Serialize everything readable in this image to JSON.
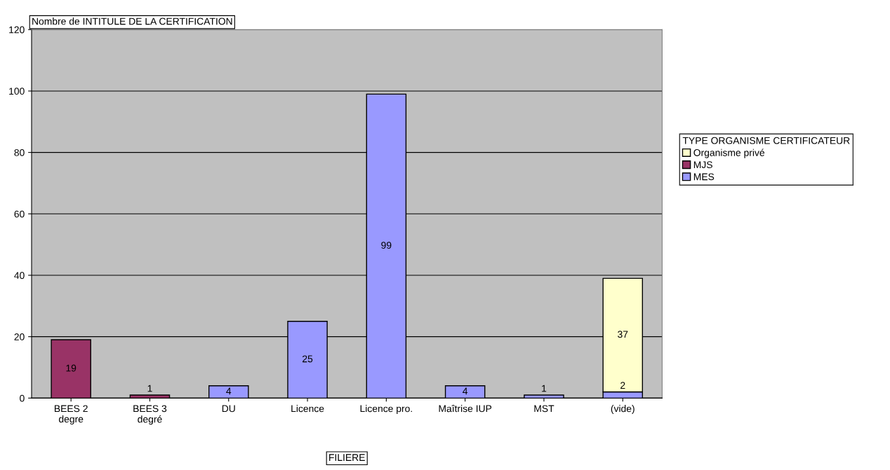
{
  "chart_data": {
    "type": "bar",
    "stacked": true,
    "title": "Nombre de INTITULE DE LA CERTIFICATION",
    "xlabel": "FILIERE",
    "legend_title": "TYPE ORGANISME CERTIFICATEUR",
    "categories": [
      "BEES 2\ndegre",
      "BEES 3\ndegré",
      "DU",
      "Licence",
      "Licence pro.",
      "Maîtrise IUP",
      "MST",
      "(vide)"
    ],
    "series": [
      {
        "name": "MES",
        "color": "#9999ff",
        "values": [
          null,
          null,
          4,
          25,
          99,
          4,
          1,
          2
        ]
      },
      {
        "name": "MJS",
        "color": "#993366",
        "values": [
          19,
          1,
          null,
          null,
          null,
          null,
          null,
          null
        ]
      },
      {
        "name": "Organisme privé",
        "color": "#ffffcc",
        "values": [
          null,
          null,
          null,
          null,
          null,
          null,
          null,
          37
        ]
      }
    ],
    "ylim": [
      0,
      120
    ],
    "yticks": [
      0,
      20,
      40,
      60,
      80,
      100,
      120
    ],
    "grid": "y",
    "legend": "right",
    "data_labels": true
  }
}
